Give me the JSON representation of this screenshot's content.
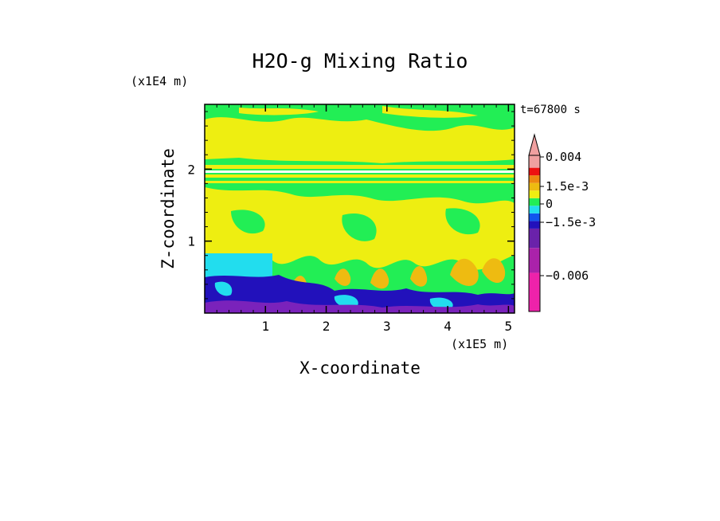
{
  "chart_data": {
    "type": "heatmap",
    "title": "H2O-g Mixing Ratio",
    "xlabel": "X-coordinate",
    "ylabel": "Z-coordinate",
    "x_unit": "(x1E5 m)",
    "y_unit": "(x1E4 m)",
    "time_label": "t=67800 s",
    "xlim": [
      0,
      5.1
    ],
    "ylim": [
      0,
      2.9
    ],
    "x_ticks": [
      1,
      2,
      3,
      4,
      5
    ],
    "y_ticks": [
      1,
      2
    ],
    "colorbar": {
      "levels": [
        {
          "color": "#ee22aa"
        },
        {
          "color": "#aa22aa"
        },
        {
          "color": "#6a22aa"
        },
        {
          "color": "#2211bb"
        },
        {
          "color": "#1155ee"
        },
        {
          "color": "#22ddee"
        },
        {
          "color": "#22ee55"
        },
        {
          "color": "#eeee11"
        },
        {
          "color": "#eebb11"
        },
        {
          "color": "#ee8811"
        },
        {
          "color": "#ee1111"
        },
        {
          "color": "#f0a0a0"
        }
      ],
      "labels": [
        {
          "text": "0.004",
          "value": 0.004
        },
        {
          "text": "1.5e-3",
          "value": 0.0015
        },
        {
          "text": "0",
          "value": 0
        },
        {
          "text": "−1.5e-3",
          "value": -0.0015
        },
        {
          "text": "−0.006",
          "value": -0.006
        }
      ]
    },
    "colors": {
      "green": "#22ee55",
      "yellow": "#eeee11",
      "orange": "#eebb11",
      "cyan": "#22ddee",
      "blue": "#2211bb",
      "purple": "#7a22bb"
    }
  }
}
